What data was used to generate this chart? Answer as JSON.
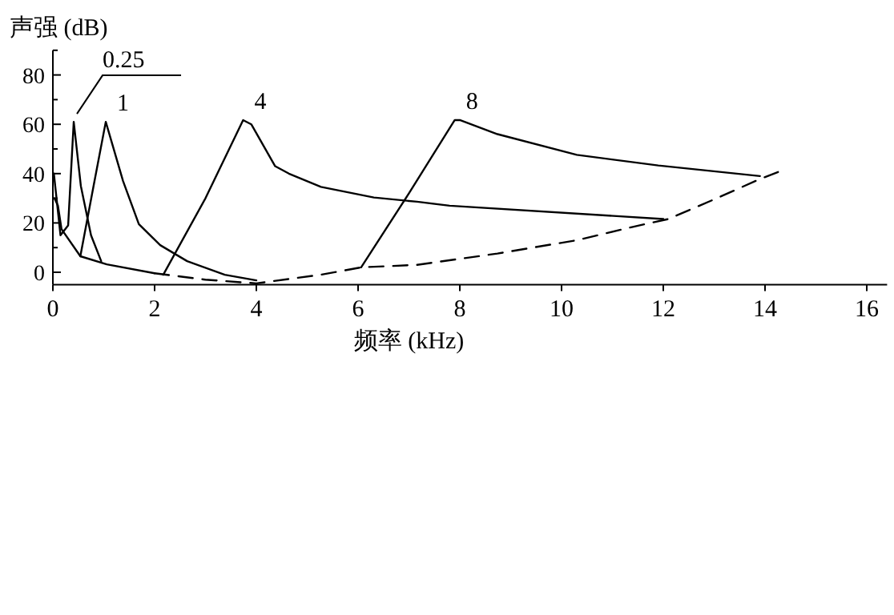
{
  "chart_data": {
    "type": "line",
    "xlabel": "频率 (kHz)",
    "ylabel": "声强 (dB)",
    "xlim": [
      0,
      16.4
    ],
    "ylim": [
      -5,
      90
    ],
    "xticks": [
      0,
      2,
      4,
      6,
      8,
      10,
      12,
      14,
      16
    ],
    "yticks": [
      0,
      {
        "value": 10,
        "label": null
      },
      20,
      {
        "value": 30,
        "label": null
      },
      40,
      {
        "value": 50,
        "label": null
      },
      60,
      {
        "value": 70,
        "label": null
      },
      80,
      {
        "value": 90,
        "label": null
      }
    ],
    "grid": false,
    "marker": "none",
    "series": [
      {
        "color": "#000000",
        "line_style": "solid",
        "x": [
          0.03,
          0.1,
          0.17,
          0.54,
          1.06,
          2.0
        ],
        "values": [
          30,
          27,
          17.5,
          6.5,
          3.2,
          -0.4
        ]
      },
      {
        "color": "#000000",
        "line_style": "dashed",
        "x": [
          2.0,
          3.0,
          4.0,
          5.27,
          6.06,
          7.16,
          8.74,
          10.3,
          11.4,
          12.1,
          13.05,
          13.9,
          14.3
        ],
        "values": [
          -0.4,
          -3,
          -4.5,
          -1,
          2,
          3,
          7.6,
          13,
          18.4,
          21.6,
          30,
          37.8,
          41
        ]
      },
      {
        "color": "#000000",
        "line_style": "solid",
        "x": [
          0.02,
          0.15,
          0.3,
          0.41,
          0.55,
          0.75,
          0.95
        ],
        "values": [
          40,
          15,
          19,
          61,
          35,
          15,
          4.5
        ]
      },
      {
        "color": "#000000",
        "line_style": "solid",
        "x": [
          0.54,
          0.8,
          1.04,
          1.38,
          1.69,
          2.11,
          2.64,
          3.38,
          4.0
        ],
        "values": [
          6.5,
          35,
          61,
          37,
          19.5,
          11,
          4.5,
          -1,
          -3.3
        ]
      },
      {
        "color": "#000000",
        "line_style": "solid",
        "x": [
          2.17,
          3.0,
          3.74,
          3.9,
          4.37,
          4.64,
          5.27,
          6.31,
          7.16,
          7.8,
          12.0
        ],
        "values": [
          -1,
          30,
          61.7,
          60,
          43,
          40,
          34.6,
          30.3,
          28.6,
          27,
          21.6
        ]
      },
      {
        "color": "#000000",
        "line_style": "solid",
        "x": [
          6.06,
          7.0,
          7.9,
          8.0,
          8.74,
          10.3,
          11.9,
          13.9
        ],
        "values": [
          2,
          32,
          61.7,
          61.7,
          56,
          47.6,
          43.3,
          39
        ]
      }
    ],
    "annotations": [
      {
        "text": "0.25",
        "x": 0.41,
        "y": 61
      },
      {
        "text": "1",
        "x": 1.04,
        "y": 61
      },
      {
        "text": "4",
        "x": 3.74,
        "y": 61.7
      },
      {
        "text": "8",
        "x": 7.9,
        "y": 61.7
      }
    ]
  }
}
